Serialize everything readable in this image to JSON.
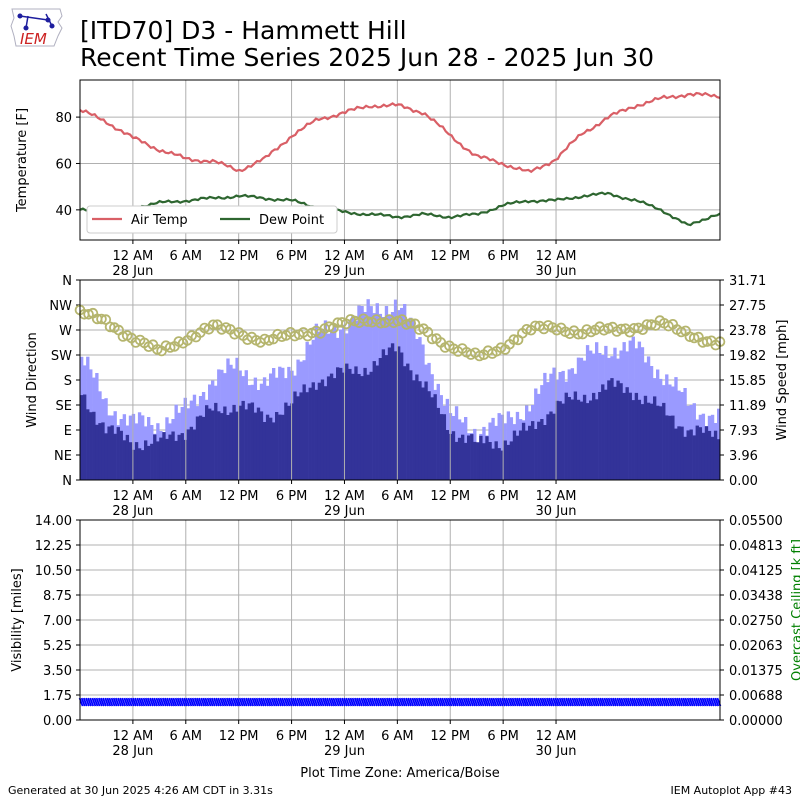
{
  "title": {
    "line1": "[ITD70] D3 - Hammett Hill",
    "line2": "Recent Time Series 2025 Jun 28 - 2025 Jun 30"
  },
  "logo": {
    "text": "IEM",
    "icon": "iem-iowa-logo-icon"
  },
  "footer": {
    "left": "Generated at 30 Jun 2025 4:26 AM CDT in 3.31s",
    "right": "IEM Autoplot App #43"
  },
  "colors": {
    "air_temp": "#d95f66",
    "dew_point": "#2e6630",
    "wind_gust": "#9a9aff",
    "wind_speed": "#333399",
    "wind_dir": "#b5b56e",
    "visibility": "#0000ff",
    "ceiling_label": "#008000",
    "grid": "#b0b0b0"
  },
  "chart_data": [
    {
      "type": "line",
      "panel": "temperature",
      "ylabel": "Temperature [F]",
      "ylim": [
        27,
        96
      ],
      "yticks": [
        40,
        60,
        80
      ],
      "grid": true,
      "legend_position": "lower-left",
      "x_hours": [
        0,
        3,
        6,
        9,
        12,
        15,
        18,
        21,
        24,
        27,
        30,
        33,
        36,
        39,
        42,
        45,
        48,
        51,
        54,
        57,
        60,
        63,
        66,
        69,
        72
      ],
      "x_tick_labels": [
        "12 AM\n28 Jun",
        "6 AM",
        "12 PM",
        "6 PM",
        "12 AM\n29 Jun",
        "6 AM",
        "12 PM",
        "6 PM",
        "12 AM\n30 Jun"
      ],
      "x_tick_hours": [
        6,
        12,
        18,
        24,
        30,
        36,
        42,
        48,
        54
      ],
      "xlim_hours": [
        0,
        72.6
      ],
      "series": [
        {
          "name": "Air Temp",
          "values": [
            83,
            78,
            71,
            66,
            62,
            61,
            57,
            62,
            72,
            79,
            82,
            85,
            85,
            82,
            72,
            63,
            60,
            56,
            62,
            73,
            80,
            85,
            88,
            90,
            89
          ]
        },
        {
          "name": "Dew Point",
          "values": [
            40,
            40,
            41,
            43,
            44,
            45,
            46,
            45,
            44,
            41,
            39,
            38,
            37,
            38,
            37,
            38,
            42,
            44,
            44,
            46,
            47,
            44,
            40,
            33,
            38
          ]
        }
      ]
    },
    {
      "type": "bar",
      "panel": "wind",
      "ylabel": "Wind Direction",
      "y2label": "Wind Speed [mph]",
      "direction_ticks": [
        "N",
        "NE",
        "E",
        "SE",
        "S",
        "SW",
        "W",
        "NW",
        "N"
      ],
      "speed_ticks": [
        "0.00",
        "3.96",
        "7.93",
        "11.89",
        "15.85",
        "19.82",
        "23.78",
        "27.75",
        "31.71"
      ],
      "speed_ylim": [
        0,
        31.71
      ],
      "direction_ylim": [
        0,
        360
      ],
      "grid": true,
      "x_hours": [
        0,
        3,
        6,
        9,
        12,
        15,
        18,
        21,
        24,
        27,
        30,
        33,
        36,
        39,
        42,
        45,
        48,
        51,
        54,
        57,
        60,
        63,
        66,
        69,
        72
      ],
      "series": [
        {
          "name": "Wind Gust",
          "values": [
            20,
            12,
            9,
            9,
            11,
            16,
            18,
            15,
            18,
            23,
            25,
            27,
            28,
            21,
            10,
            8,
            9,
            12,
            17,
            19,
            21,
            21,
            17,
            12,
            10
          ]
        },
        {
          "name": "Wind Speed",
          "values": [
            14,
            8,
            6,
            6,
            8,
            11,
            12,
            10,
            12,
            16,
            17,
            18,
            21,
            15,
            8,
            6,
            6,
            8,
            12,
            13,
            15,
            14,
            11,
            8,
            7
          ]
        },
        {
          "name": "Wind Direction",
          "values": [
            300,
            285,
            255,
            230,
            255,
            275,
            265,
            250,
            260,
            270,
            280,
            290,
            285,
            270,
            240,
            220,
            240,
            270,
            275,
            265,
            270,
            275,
            280,
            265,
            245
          ]
        }
      ]
    },
    {
      "type": "scatter",
      "panel": "visibility",
      "ylabel": "Visibility [miles]",
      "y2label": "Overcast Ceiling [k ft]",
      "ylim": [
        0,
        14
      ],
      "yticks": [
        "0.00",
        "1.75",
        "3.50",
        "5.25",
        "7.00",
        "8.75",
        "10.50",
        "12.25",
        "14.00"
      ],
      "y2ticks": [
        "0.00000",
        "0.00688",
        "0.01375",
        "0.02063",
        "0.02750",
        "0.03438",
        "0.04125",
        "0.04813",
        "0.05500"
      ],
      "y2lim": [
        0,
        0.055
      ],
      "grid": true,
      "constant_value": 1.25,
      "x_range_hours": [
        0,
        72.6
      ]
    }
  ],
  "xlabel": "Plot Time Zone: America/Boise"
}
